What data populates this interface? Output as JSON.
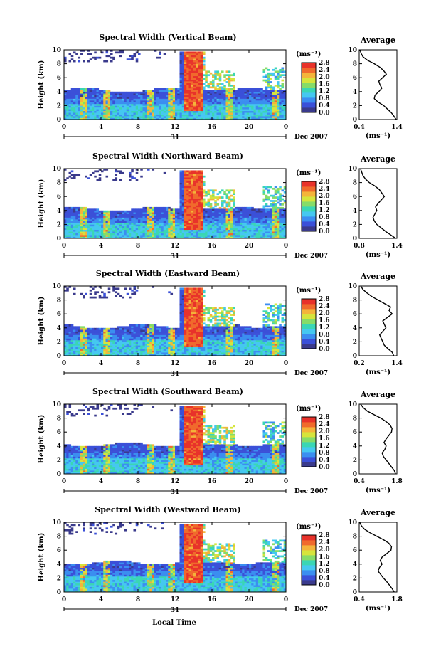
{
  "figure": {
    "xaxis_label": "Local Time",
    "date_label": "Dec 2007",
    "day_label": "31",
    "unit_label": "(ms⁻¹)",
    "y_label": "Height (km)",
    "avg_title": "Average",
    "avg_xlabel": "(ms⁻¹)",
    "x_ticks": [
      "0",
      "4",
      "8",
      "12",
      "16",
      "20",
      "0"
    ],
    "y_ticks": [
      "0",
      "2",
      "4",
      "6",
      "8",
      "10"
    ],
    "cbar_ticks": [
      "0.0",
      "0.4",
      "0.8",
      "1.2",
      "1.6",
      "2.0",
      "2.4",
      "2.8"
    ],
    "colormap": [
      "#3a3a8c",
      "#3b50d8",
      "#3b8ef0",
      "#45c8f0",
      "#3ad6b4",
      "#86dc68",
      "#d6e43c",
      "#f4b43a",
      "#f06a2c",
      "#e8322a"
    ]
  },
  "chart_data": [
    {
      "type": "heatmap",
      "title": "Spectral Width (Vertical Beam)",
      "xlabel": "Local Time",
      "ylabel": "Height (km)",
      "xlim": [
        0,
        24
      ],
      "ylim": [
        0,
        10
      ],
      "clim": [
        0.0,
        2.8
      ],
      "avg_profile": {
        "xlim": [
          0.4,
          1.4
        ],
        "xticks": [
          "0.4",
          "1.4"
        ],
        "height": [
          0,
          0.5,
          1,
          1.5,
          2,
          2.5,
          3,
          3.5,
          4,
          4.5,
          5,
          5.5,
          6,
          6.5,
          7,
          7.5,
          8,
          8.5,
          9,
          9.5,
          10
        ],
        "value": [
          1.38,
          1.32,
          1.25,
          1.15,
          1.05,
          0.9,
          0.8,
          0.82,
          0.92,
          1.0,
          0.95,
          0.92,
          1.02,
          1.12,
          1.05,
          0.95,
          0.8,
          0.62,
          0.5,
          0.45,
          0.42
        ]
      }
    },
    {
      "type": "heatmap",
      "title": "Spectral Width (Northward Beam)",
      "xlabel": "Local Time",
      "ylabel": "Height (km)",
      "xlim": [
        0,
        24
      ],
      "ylim": [
        0,
        10
      ],
      "clim": [
        0.0,
        2.8
      ],
      "avg_profile": {
        "xlim": [
          0.8,
          1.4
        ],
        "xticks": [
          "0.8",
          "1.4"
        ],
        "height": [
          0,
          0.5,
          1,
          1.5,
          2,
          2.5,
          3,
          3.5,
          4,
          4.5,
          5,
          5.5,
          6,
          6.5,
          7,
          7.5,
          8,
          8.5,
          9,
          9.5,
          10
        ],
        "value": [
          1.38,
          1.3,
          1.22,
          1.15,
          1.08,
          1.04,
          1.02,
          1.05,
          1.08,
          1.06,
          1.1,
          1.15,
          1.2,
          1.16,
          1.12,
          1.05,
          0.96,
          0.9,
          0.86,
          0.84,
          0.82
        ]
      }
    },
    {
      "type": "heatmap",
      "title": "Spectral Width (Eastward Beam)",
      "xlabel": "Local Time",
      "ylabel": "Height (km)",
      "xlim": [
        0,
        24
      ],
      "ylim": [
        0,
        10
      ],
      "clim": [
        0.0,
        2.8
      ],
      "avg_profile": {
        "xlim": [
          0.2,
          1.4
        ],
        "xticks": [
          "0.2",
          "1.4"
        ],
        "height": [
          0,
          0.5,
          1,
          1.5,
          2,
          2.5,
          3,
          3.5,
          4,
          4.5,
          5,
          5.5,
          6,
          6.5,
          7,
          7.5,
          8,
          8.5,
          9,
          9.5,
          10
        ],
        "value": [
          1.3,
          1.25,
          1.12,
          1.0,
          0.95,
          0.9,
          0.85,
          0.95,
          1.05,
          1.0,
          0.95,
          1.1,
          1.25,
          1.15,
          1.2,
          1.0,
          0.8,
          0.6,
          0.45,
          0.32,
          0.25
        ]
      }
    },
    {
      "type": "heatmap",
      "title": "Spectral Width (Southward Beam)",
      "xlabel": "Local Time",
      "ylabel": "Height (km)",
      "xlim": [
        0,
        24
      ],
      "ylim": [
        0,
        10
      ],
      "clim": [
        0.0,
        2.8
      ],
      "avg_profile": {
        "xlim": [
          0.4,
          1.8
        ],
        "xticks": [
          "0.4",
          "1.8"
        ],
        "height": [
          0,
          0.5,
          1,
          1.5,
          2,
          2.5,
          3,
          3.5,
          4,
          4.5,
          5,
          5.5,
          6,
          6.5,
          7,
          7.5,
          8,
          8.5,
          9,
          9.5,
          10
        ],
        "value": [
          1.75,
          1.7,
          1.6,
          1.5,
          1.4,
          1.3,
          1.25,
          1.35,
          1.4,
          1.32,
          1.4,
          1.5,
          1.6,
          1.62,
          1.55,
          1.4,
          1.2,
          0.95,
          0.7,
          0.55,
          0.45
        ]
      }
    },
    {
      "type": "heatmap",
      "title": "Spectral Width (Westward Beam)",
      "xlabel": "Local Time",
      "ylabel": "Height (km)",
      "xlim": [
        0,
        24
      ],
      "ylim": [
        0,
        10
      ],
      "clim": [
        0.0,
        2.8
      ],
      "avg_profile": {
        "xlim": [
          0.4,
          1.8
        ],
        "xticks": [
          "0.4",
          "1.8"
        ],
        "height": [
          0,
          0.5,
          1,
          1.5,
          2,
          2.5,
          3,
          3.5,
          4,
          4.5,
          5,
          5.5,
          6,
          6.5,
          7,
          7.5,
          8,
          8.5,
          9,
          9.5,
          10
        ],
        "value": [
          1.7,
          1.62,
          1.52,
          1.42,
          1.3,
          1.2,
          1.1,
          1.15,
          1.25,
          1.18,
          1.25,
          1.42,
          1.58,
          1.6,
          1.5,
          1.3,
          1.05,
          0.8,
          0.6,
          0.48,
          0.42
        ]
      }
    }
  ]
}
